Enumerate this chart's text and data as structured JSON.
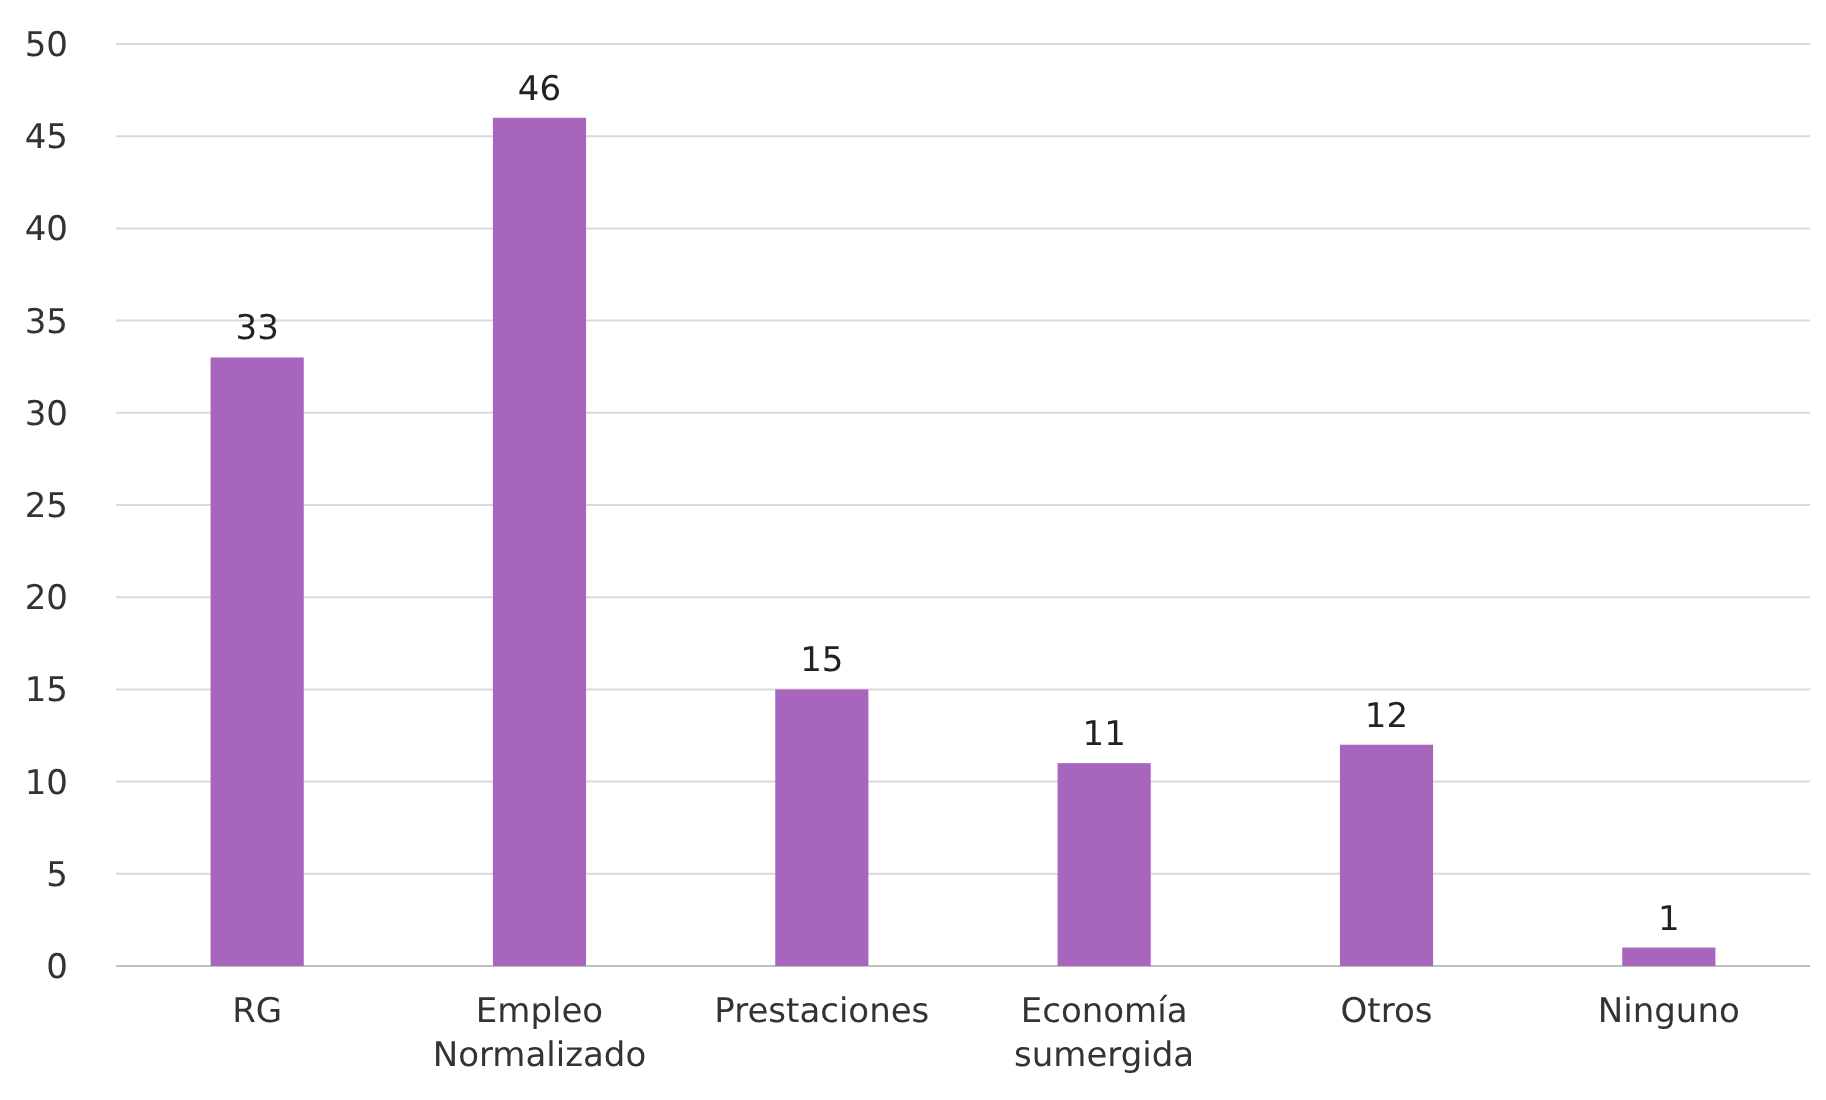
{
  "chart_data": {
    "type": "bar",
    "categories": [
      "RG",
      "Empleo Normalizado",
      "Prestaciones",
      "Economía sumergida",
      "Otros",
      "Ninguno"
    ],
    "values": [
      33,
      46,
      15,
      11,
      12,
      1
    ],
    "color": "#a865bd",
    "ylim": [
      0,
      50
    ],
    "yticks": [
      0,
      5,
      10,
      15,
      20,
      25,
      30,
      35,
      40,
      45,
      50
    ],
    "grid": "y",
    "data_labels": true
  }
}
